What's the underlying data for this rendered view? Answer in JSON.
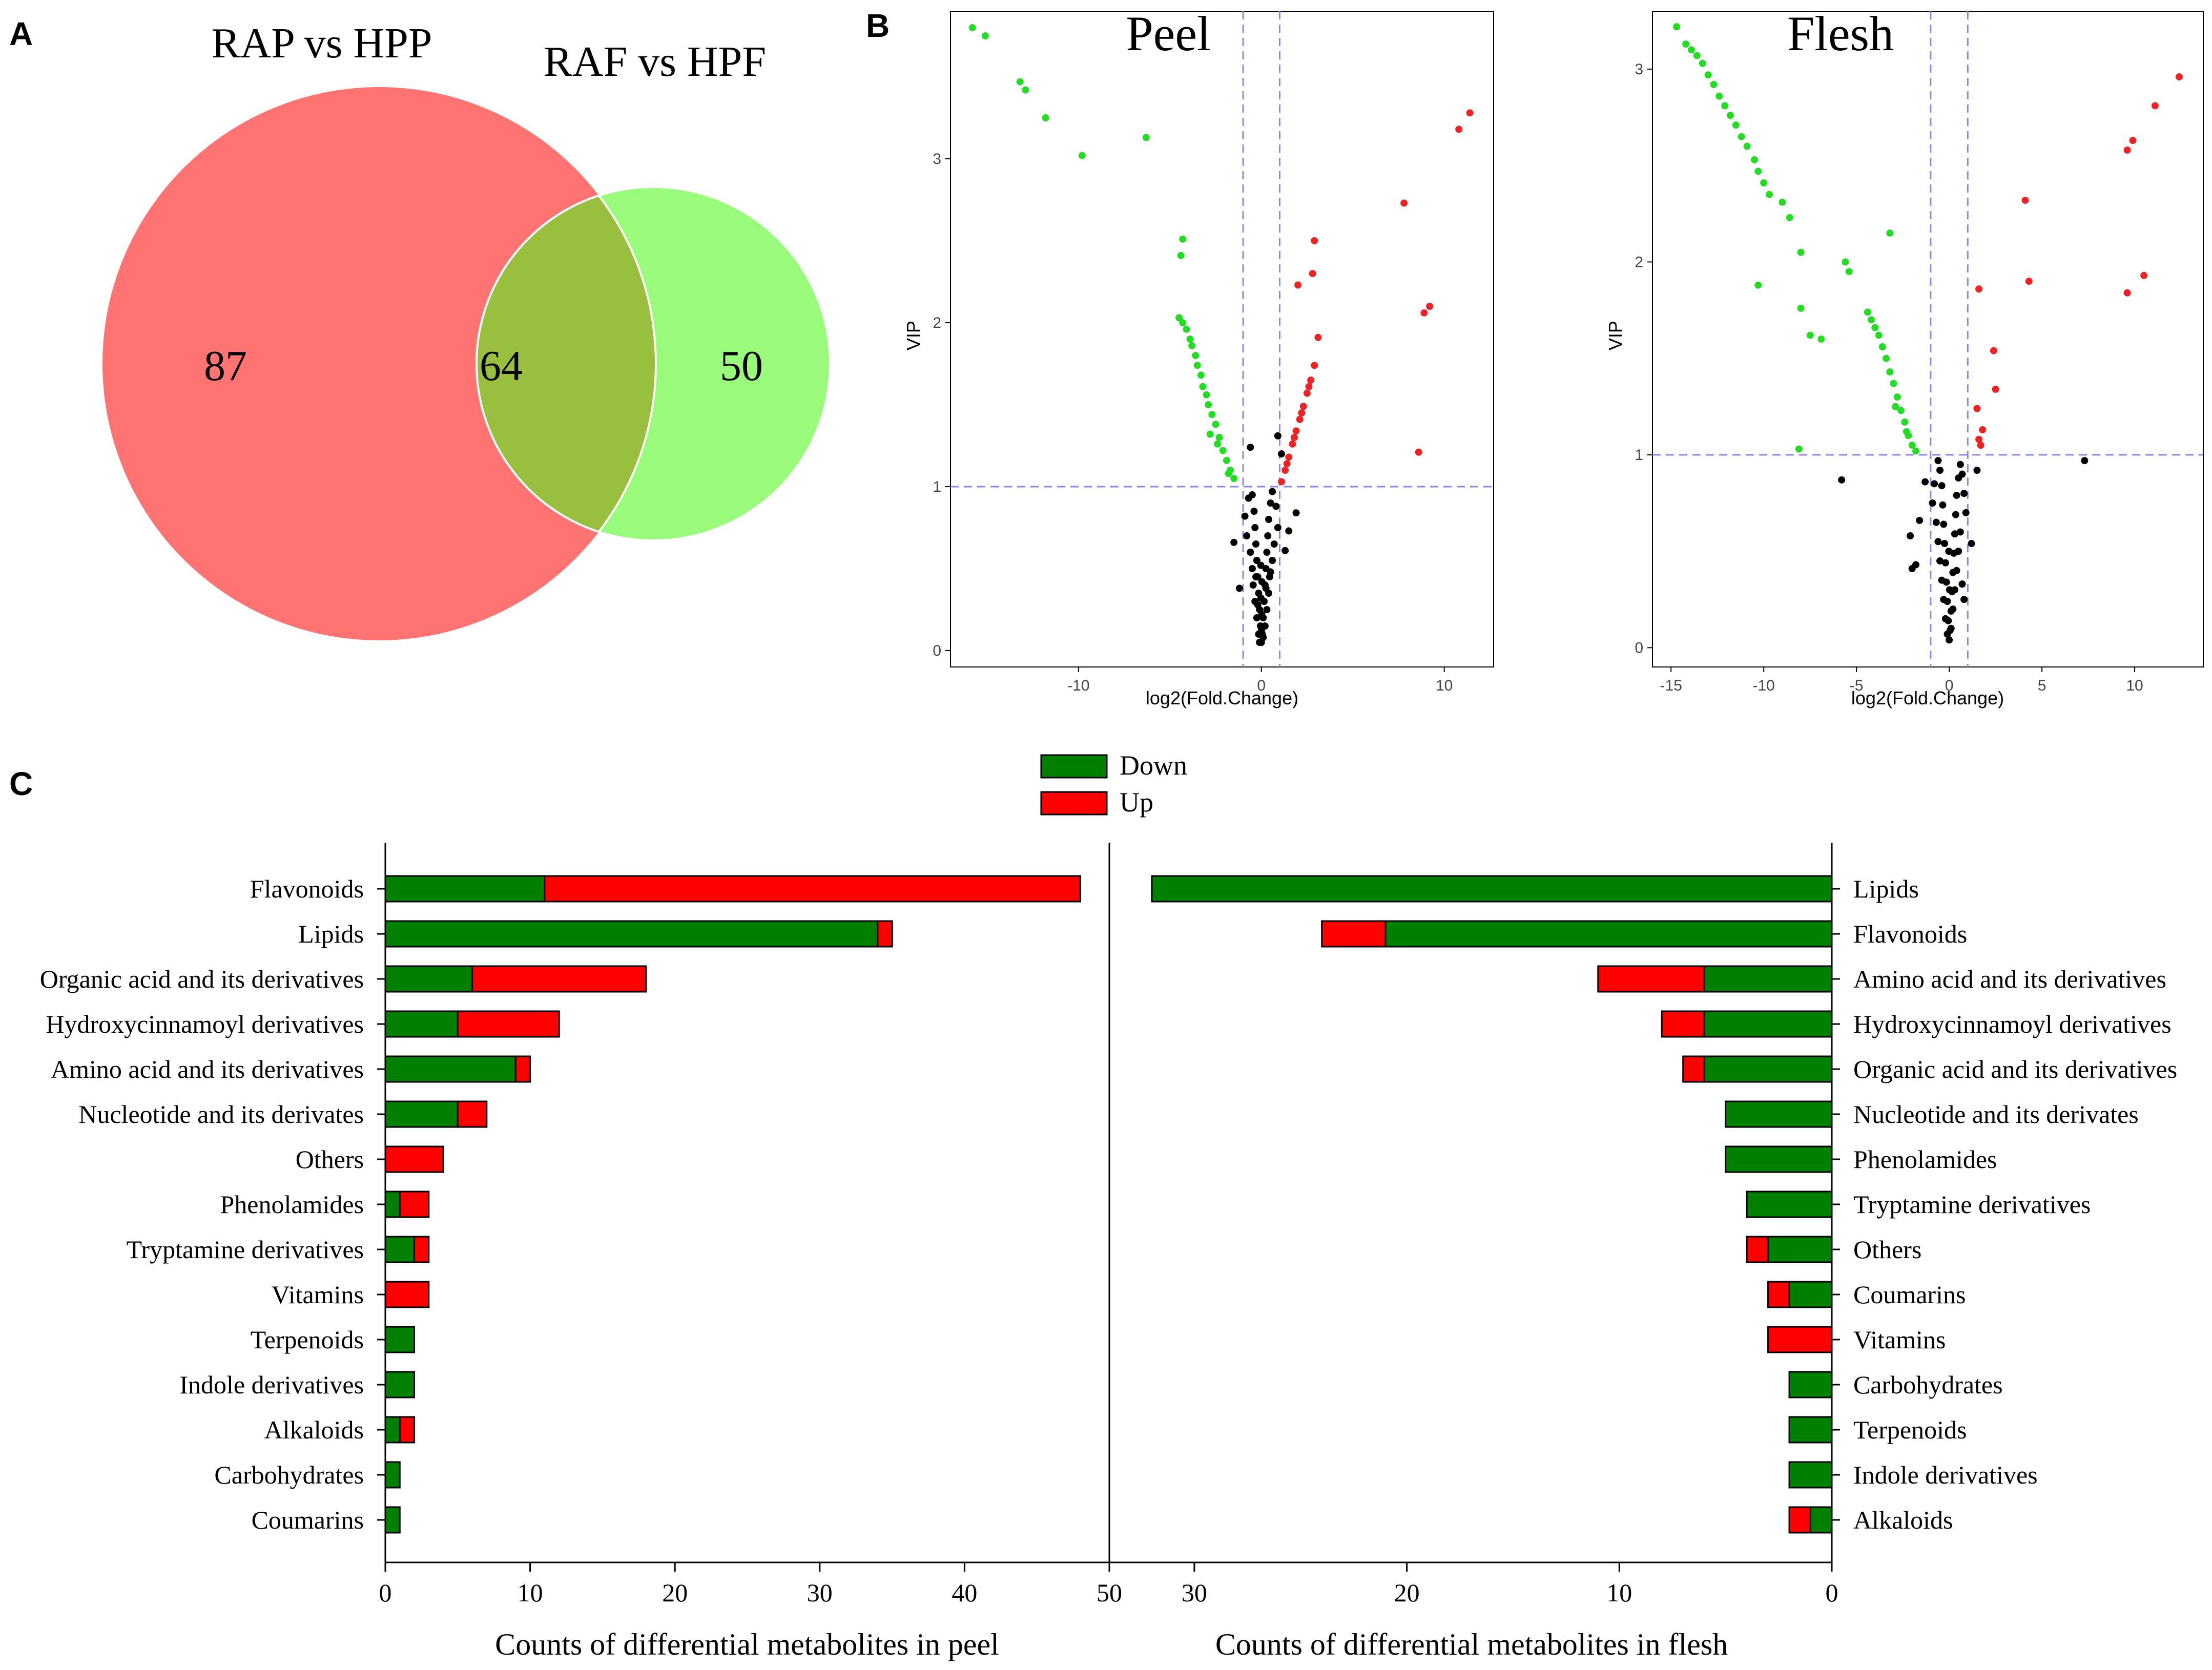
{
  "panel_labels": {
    "a": "A",
    "b": "B",
    "c": "C"
  },
  "colors": {
    "venn_left": "#FF7373",
    "venn_right": "#98FB7C",
    "venn_overlap": "#9ABF3E",
    "down": "#008000",
    "up": "#FF0000",
    "volcano_down": "#22DD22",
    "volcano_up": "#EE2222",
    "volcano_ns": "#000000",
    "guide": "#8A8AE6"
  },
  "chart_data": [
    {
      "id": "venn",
      "type": "venn",
      "sets": [
        {
          "name": "RAP vs HPP",
          "only": "87"
        },
        {
          "name": "RAF vs HPF",
          "only": "50"
        }
      ],
      "overlap": "64"
    },
    {
      "id": "volcano_peel",
      "type": "scatter",
      "title": "Peel",
      "xlabel": "log2(Fold.Change)",
      "ylabel": "VIP",
      "xlim": [
        -17,
        12.7
      ],
      "ylim": [
        -0.1,
        3.9
      ],
      "xticks": [
        -10,
        0,
        10
      ],
      "yticks": [
        0,
        1,
        2,
        3
      ],
      "vlines": [
        -1,
        1
      ],
      "hline": 1,
      "down_points": [
        [
          -15.8,
          3.8
        ],
        [
          -15.1,
          3.75
        ],
        [
          -13.2,
          3.47
        ],
        [
          -12.9,
          3.42
        ],
        [
          -11.8,
          3.25
        ],
        [
          -6.3,
          3.13
        ],
        [
          -9.8,
          3.02
        ],
        [
          -4.3,
          2.51
        ],
        [
          -4.4,
          2.41
        ],
        [
          -4.5,
          2.03
        ],
        [
          -4.3,
          2.0
        ],
        [
          -4.1,
          1.96
        ],
        [
          -3.9,
          1.9
        ],
        [
          -3.8,
          1.86
        ],
        [
          -3.6,
          1.8
        ],
        [
          -3.5,
          1.74
        ],
        [
          -3.3,
          1.68
        ],
        [
          -3.2,
          1.61
        ],
        [
          -3.0,
          1.56
        ],
        [
          -2.9,
          1.5
        ],
        [
          -2.7,
          1.44
        ],
        [
          -2.5,
          1.38
        ],
        [
          -2.3,
          1.3
        ],
        [
          -2.1,
          1.22
        ],
        [
          -1.9,
          1.16
        ],
        [
          -1.7,
          1.1
        ],
        [
          -1.5,
          1.05
        ],
        [
          -2.8,
          1.32
        ],
        [
          -2.4,
          1.26
        ],
        [
          -1.8,
          1.08
        ]
      ],
      "up_points": [
        [
          11.4,
          3.28
        ],
        [
          10.8,
          3.18
        ],
        [
          7.8,
          2.73
        ],
        [
          2.9,
          2.5
        ],
        [
          2.8,
          2.3
        ],
        [
          2.0,
          2.23
        ],
        [
          9.2,
          2.1
        ],
        [
          8.9,
          2.06
        ],
        [
          3.1,
          1.91
        ],
        [
          2.9,
          1.74
        ],
        [
          2.7,
          1.65
        ],
        [
          2.5,
          1.57
        ],
        [
          2.3,
          1.49
        ],
        [
          2.1,
          1.41
        ],
        [
          1.9,
          1.34
        ],
        [
          1.7,
          1.26
        ],
        [
          1.5,
          1.18
        ],
        [
          1.3,
          1.1
        ],
        [
          1.1,
          1.03
        ],
        [
          8.6,
          1.21
        ],
        [
          2.6,
          1.61
        ],
        [
          2.2,
          1.45
        ],
        [
          1.8,
          1.3
        ],
        [
          1.4,
          1.14
        ]
      ],
      "ns_points": [
        [
          0.0,
          0.05
        ],
        [
          0.05,
          0.1
        ],
        [
          -0.05,
          0.15
        ],
        [
          0.1,
          0.2
        ],
        [
          -0.1,
          0.25
        ],
        [
          0.15,
          0.3
        ],
        [
          -0.15,
          0.35
        ],
        [
          0.2,
          0.4
        ],
        [
          -0.2,
          0.45
        ],
        [
          0.25,
          0.5
        ],
        [
          -0.25,
          0.55
        ],
        [
          0.3,
          0.6
        ],
        [
          -0.3,
          0.65
        ],
        [
          0.35,
          0.7
        ],
        [
          -0.35,
          0.75
        ],
        [
          0.4,
          0.8
        ],
        [
          -0.4,
          0.85
        ],
        [
          0.5,
          0.9
        ],
        [
          -0.5,
          0.95
        ],
        [
          0.6,
          0.97
        ],
        [
          -0.7,
          0.93
        ],
        [
          0.8,
          0.88
        ],
        [
          -0.9,
          0.82
        ],
        [
          0.9,
          0.75
        ],
        [
          -0.8,
          0.7
        ],
        [
          0.7,
          0.65
        ],
        [
          -0.6,
          0.6
        ],
        [
          0.6,
          0.55
        ],
        [
          -0.5,
          0.5
        ],
        [
          0.45,
          0.45
        ],
        [
          -0.45,
          0.4
        ],
        [
          0.4,
          0.35
        ],
        [
          -0.35,
          0.3
        ],
        [
          0.3,
          0.25
        ],
        [
          -0.25,
          0.2
        ],
        [
          0.2,
          0.15
        ],
        [
          -0.15,
          0.1
        ],
        [
          0.1,
          0.08
        ],
        [
          -0.1,
          0.05
        ],
        [
          0.0,
          0.12
        ],
        [
          0.02,
          0.22
        ],
        [
          -0.02,
          0.32
        ],
        [
          0.03,
          0.42
        ],
        [
          -0.03,
          0.52
        ],
        [
          1.5,
          0.73
        ],
        [
          1.9,
          0.84
        ],
        [
          -1.5,
          0.66
        ],
        [
          -1.2,
          0.38
        ],
        [
          1.3,
          0.61
        ],
        [
          -0.6,
          1.24
        ],
        [
          0.9,
          1.31
        ],
        [
          1.1,
          1.2
        ],
        [
          0.5,
          0.48
        ],
        [
          -0.3,
          0.45
        ],
        [
          0.25,
          0.38
        ],
        [
          -0.2,
          0.28
        ]
      ]
    },
    {
      "id": "volcano_flesh",
      "type": "scatter",
      "title": "Flesh",
      "xlabel": "log2(Fold.Change)",
      "ylabel": "VIP",
      "xlim": [
        -16,
        13.7
      ],
      "ylim": [
        -0.1,
        3.3
      ],
      "xticks": [
        -15,
        -10,
        -5,
        0,
        5,
        10
      ],
      "yticks": [
        0,
        1,
        2,
        3
      ],
      "vlines": [
        -1,
        1
      ],
      "hline": 1,
      "down_points": [
        [
          -14.7,
          3.22
        ],
        [
          -14.2,
          3.13
        ],
        [
          -13.9,
          3.1
        ],
        [
          -13.6,
          3.07
        ],
        [
          -13.3,
          3.03
        ],
        [
          -13.0,
          2.97
        ],
        [
          -12.7,
          2.92
        ],
        [
          -12.4,
          2.86
        ],
        [
          -12.1,
          2.81
        ],
        [
          -11.8,
          2.76
        ],
        [
          -11.5,
          2.71
        ],
        [
          -11.2,
          2.65
        ],
        [
          -10.9,
          2.6
        ],
        [
          -10.5,
          2.53
        ],
        [
          -10.3,
          2.47
        ],
        [
          -10.0,
          2.41
        ],
        [
          -9.7,
          2.35
        ],
        [
          -9.0,
          2.31
        ],
        [
          -8.6,
          2.23
        ],
        [
          -8.0,
          2.05
        ],
        [
          -3.2,
          2.15
        ],
        [
          -5.6,
          2.0
        ],
        [
          -5.4,
          1.95
        ],
        [
          -10.3,
          1.88
        ],
        [
          -8.0,
          1.76
        ],
        [
          -4.4,
          1.74
        ],
        [
          -4.2,
          1.7
        ],
        [
          -4.0,
          1.66
        ],
        [
          -3.8,
          1.62
        ],
        [
          -3.6,
          1.56
        ],
        [
          -3.4,
          1.5
        ],
        [
          -3.2,
          1.43
        ],
        [
          -3.0,
          1.37
        ],
        [
          -2.8,
          1.3
        ],
        [
          -2.6,
          1.23
        ],
        [
          -2.4,
          1.17
        ],
        [
          -2.2,
          1.1
        ],
        [
          -2.0,
          1.05
        ],
        [
          -1.8,
          1.02
        ],
        [
          -7.5,
          1.62
        ],
        [
          -6.9,
          1.6
        ],
        [
          -8.1,
          1.03
        ],
        [
          -2.9,
          1.25
        ],
        [
          -2.3,
          1.12
        ]
      ],
      "up_points": [
        [
          12.4,
          2.96
        ],
        [
          11.1,
          2.81
        ],
        [
          9.9,
          2.63
        ],
        [
          9.6,
          2.58
        ],
        [
          4.1,
          2.32
        ],
        [
          10.5,
          1.93
        ],
        [
          9.6,
          1.84
        ],
        [
          4.3,
          1.9
        ],
        [
          1.6,
          1.86
        ],
        [
          2.4,
          1.54
        ],
        [
          2.5,
          1.34
        ],
        [
          1.5,
          1.24
        ],
        [
          1.8,
          1.13
        ],
        [
          1.6,
          1.08
        ],
        [
          1.7,
          1.05
        ]
      ],
      "ns_points": [
        [
          0.0,
          0.04
        ],
        [
          0.05,
          0.09
        ],
        [
          -0.05,
          0.14
        ],
        [
          0.1,
          0.19
        ],
        [
          -0.1,
          0.24
        ],
        [
          0.15,
          0.29
        ],
        [
          -0.15,
          0.34
        ],
        [
          0.2,
          0.39
        ],
        [
          -0.2,
          0.44
        ],
        [
          0.25,
          0.49
        ],
        [
          -0.25,
          0.54
        ],
        [
          0.3,
          0.59
        ],
        [
          -0.3,
          0.64
        ],
        [
          0.35,
          0.69
        ],
        [
          -0.35,
          0.74
        ],
        [
          0.4,
          0.79
        ],
        [
          -0.4,
          0.84
        ],
        [
          0.5,
          0.88
        ],
        [
          -0.5,
          0.92
        ],
        [
          0.6,
          0.95
        ],
        [
          -0.6,
          0.97
        ],
        [
          0.7,
          0.9
        ],
        [
          -0.8,
          0.85
        ],
        [
          0.8,
          0.8
        ],
        [
          -0.9,
          0.75
        ],
        [
          0.9,
          0.7
        ],
        [
          -0.7,
          0.65
        ],
        [
          0.6,
          0.6
        ],
        [
          -0.6,
          0.55
        ],
        [
          0.5,
          0.5
        ],
        [
          -0.5,
          0.45
        ],
        [
          0.4,
          0.4
        ],
        [
          -0.4,
          0.35
        ],
        [
          0.3,
          0.3
        ],
        [
          -0.3,
          0.25
        ],
        [
          0.2,
          0.2
        ],
        [
          -0.2,
          0.15
        ],
        [
          0.1,
          0.1
        ],
        [
          -0.1,
          0.07
        ],
        [
          0.02,
          0.3
        ],
        [
          -0.02,
          0.5
        ],
        [
          -5.8,
          0.87
        ],
        [
          7.3,
          0.97
        ],
        [
          -1.8,
          0.43
        ],
        [
          -2.1,
          0.58
        ],
        [
          -1.6,
          0.66
        ],
        [
          0.8,
          0.25
        ],
        [
          1.2,
          0.54
        ],
        [
          -1.3,
          0.86
        ],
        [
          1.5,
          0.92
        ],
        [
          -2.0,
          0.41
        ],
        [
          0.7,
          0.33
        ]
      ]
    },
    {
      "id": "bar_peel",
      "type": "bar",
      "orientation": "horizontal",
      "stacked": true,
      "xlabel": "Counts of differential metabolites in peel",
      "xlim": [
        0,
        50
      ],
      "xticks": [
        0,
        10,
        20,
        30,
        40,
        50
      ],
      "categories": [
        "Flavonoids",
        "Lipids",
        "Organic acid and its derivatives",
        "Hydroxycinnamoyl derivatives",
        "Amino acid and its derivatives",
        "Nucleotide and its derivates",
        "Others",
        "Phenolamides",
        "Tryptamine derivatives",
        "Vitamins",
        "Terpenoids",
        "Indole derivatives",
        "Alkaloids",
        "Carbohydrates",
        "Coumarins"
      ],
      "series": [
        {
          "name": "Down",
          "values": [
            11,
            34,
            6,
            5,
            9,
            5,
            0,
            1,
            2,
            0,
            2,
            2,
            1,
            1,
            1
          ]
        },
        {
          "name": "Up",
          "values": [
            37,
            1,
            12,
            7,
            1,
            2,
            4,
            2,
            1,
            3,
            0,
            0,
            1,
            0,
            0
          ]
        }
      ]
    },
    {
      "id": "bar_flesh",
      "type": "bar",
      "orientation": "horizontal",
      "stacked": true,
      "reversed": true,
      "xlabel": "Counts of differential metabolites in flesh",
      "xlim": [
        0,
        34
      ],
      "xticks": [
        30,
        20,
        10,
        0
      ],
      "categories": [
        "Lipids",
        "Flavonoids",
        "Amino acid and its derivatives",
        "Hydroxycinnamoyl derivatives",
        "Organic acid and its derivatives",
        "Nucleotide and its derivates",
        "Phenolamides",
        "Tryptamine derivatives",
        "Others",
        "Coumarins",
        "Vitamins",
        "Carbohydrates",
        "Terpenoids",
        "Indole derivatives",
        "Alkaloids"
      ],
      "series": [
        {
          "name": "Down",
          "values": [
            32,
            21,
            6,
            6,
            6,
            5,
            5,
            4,
            3,
            2,
            0,
            2,
            2,
            2,
            1
          ]
        },
        {
          "name": "Up",
          "values": [
            0,
            3,
            5,
            2,
            1,
            0,
            0,
            0,
            1,
            1,
            3,
            0,
            0,
            0,
            1
          ]
        }
      ]
    }
  ],
  "legend": {
    "items": [
      "Down",
      "Up"
    ]
  }
}
